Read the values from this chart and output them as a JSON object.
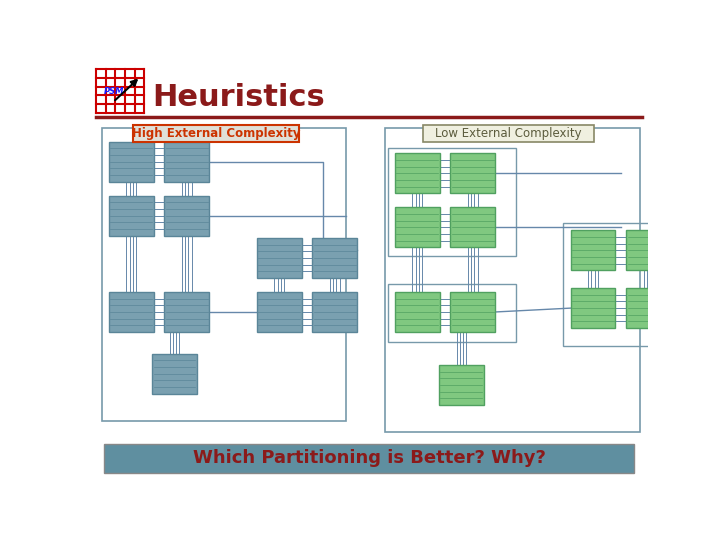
{
  "title": "Heuristics",
  "title_color": "#8B1A1A",
  "bg_color": "#FFFFFF",
  "separator_color": "#8B1A1A",
  "label_high": "High External Complexity",
  "label_low": "Low External Complexity",
  "label_high_color": "#CC3300",
  "label_low_color": "#5C5C3D",
  "bottom_text": "Which Partitioning is Better? Why?",
  "bottom_text_color": "#8B1A1A",
  "bottom_bg": "#5F8FA0",
  "block_color_blue": "#7AA0B0",
  "block_border_blue": "#5A8598",
  "block_color_green": "#80C880",
  "block_border_green": "#50A060",
  "connector_color": "#6688AA",
  "box_border_color": "#7799AA"
}
